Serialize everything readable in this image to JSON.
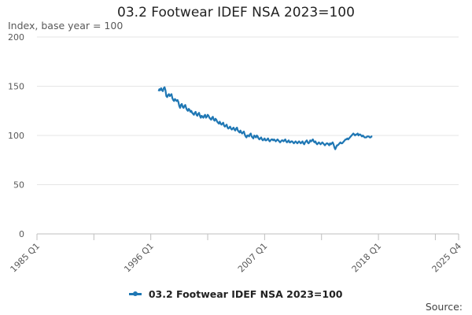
{
  "chart_data": {
    "type": "line",
    "title": "03.2 Footwear IDEF NSA 2023=100",
    "subtitle": "Index, base year = 100",
    "source": "Source:",
    "xlabel": "",
    "ylabel": "",
    "x_ticks": [
      "1985 Q1",
      "1996 Q1",
      "2007 Q1",
      "2018 Q1",
      "2025 Q4"
    ],
    "x_range": [
      1985.0,
      2025.75
    ],
    "y_ticks": [
      0,
      50,
      100,
      150,
      200
    ],
    "ylim": [
      0,
      200
    ],
    "grid": "horizontal",
    "legend_position": "bottom",
    "color": "#1f77b4",
    "series": [
      {
        "name": "03.2 Footwear IDEF NSA 2023=100",
        "x_start": 1996.75,
        "step": 0.0833,
        "values": [
          145,
          147,
          146,
          148,
          146,
          145,
          148,
          149,
          146,
          140,
          139,
          141,
          142,
          140,
          141,
          142,
          138,
          136,
          135,
          137,
          136,
          135,
          136,
          134,
          130,
          128,
          131,
          132,
          129,
          128,
          130,
          131,
          128,
          126,
          125,
          127,
          126,
          124,
          125,
          123,
          122,
          121,
          123,
          124,
          121,
          120,
          122,
          123,
          120,
          118,
          120,
          119,
          118,
          120,
          121,
          118,
          119,
          121,
          120,
          118,
          117,
          116,
          118,
          119,
          116,
          115,
          117,
          116,
          114,
          113,
          112,
          114,
          112,
          111,
          112,
          113,
          110,
          109,
          110,
          111,
          108,
          107,
          108,
          109,
          107,
          106,
          107,
          108,
          106,
          105,
          107,
          108,
          105,
          104,
          103,
          105,
          103,
          102,
          103,
          104,
          101,
          99,
          98,
          100,
          100,
          99,
          101,
          102,
          99,
          98,
          97,
          100,
          99,
          98,
          100,
          99,
          97,
          96,
          97,
          98,
          96,
          95,
          96,
          97,
          95,
          95,
          96,
          97,
          95,
          94,
          95,
          96,
          96,
          95,
          96,
          95,
          94,
          95,
          96,
          95,
          94,
          93,
          94,
          95,
          95,
          94,
          95,
          96,
          94,
          93,
          94,
          95,
          93,
          93,
          94,
          94,
          93,
          92,
          93,
          94,
          93,
          92,
          93,
          94,
          93,
          92,
          93,
          94,
          92,
          91,
          93,
          94,
          95,
          93,
          92,
          93,
          95,
          94,
          95,
          96,
          94,
          93,
          94,
          92,
          91,
          92,
          93,
          92,
          91,
          92,
          93,
          92,
          91,
          90,
          91,
          92,
          92,
          91,
          90,
          92,
          91,
          92,
          93,
          91,
          88,
          86,
          88,
          90,
          90,
          91,
          92,
          93,
          92,
          92,
          93,
          94,
          95,
          96,
          96,
          97,
          96,
          97,
          98,
          99,
          100,
          101,
          102,
          101,
          100,
          101,
          101,
          102,
          100,
          101,
          101,
          100,
          99,
          100,
          99,
          98,
          98,
          98,
          99,
          99,
          99,
          98,
          98,
          99,
          99
        ]
      }
    ]
  }
}
